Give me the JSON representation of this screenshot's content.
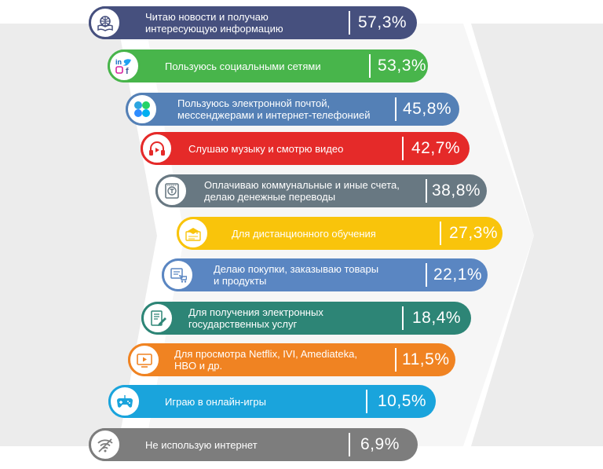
{
  "chart_data": {
    "type": "bar",
    "categories": [
      "Читаю новости и получаю интересующую информацию",
      "Пользуюсь социальными сетями",
      "Пользуюсь электронной почтой, мессенджерами и интернет-телефонией",
      "Слушаю музыку и смотрю видео",
      "Оплачиваю коммунальные и иные счета, делаю денежные переводы",
      "Для дистанционного обучения",
      "Делаю покупки, заказываю товары и продукты",
      "Для получения электронных государственных услуг",
      "Для просмотра Netflix, IVI, Amediateka, HBO и др.",
      "Играю в онлайн-игры",
      "Не использую интернет"
    ],
    "values": [
      57.3,
      53.3,
      45.8,
      42.7,
      38.8,
      27.3,
      22.1,
      18.4,
      11.5,
      10.5,
      6.9
    ],
    "value_labels": [
      "57,3%",
      "53,3%",
      "45,8%",
      "42,7%",
      "38,8%",
      "27,3%",
      "22,1%",
      "18,4%",
      "11,5%",
      "10,5%",
      "6,9%"
    ],
    "title": "",
    "xlabel": "",
    "ylabel": ""
  },
  "rows": [
    {
      "label": [
        "Читаю новости и получаю",
        "интересующую информацию"
      ],
      "value": "57,3%",
      "color": "#46507e",
      "icon": "book-globe-icon",
      "icon_name": "news-icon"
    },
    {
      "label": [
        "Пользуюсь социальными сетями"
      ],
      "value": "53,3%",
      "color": "#48b54b",
      "icon": "social-icon",
      "icon_name": "social-media-icon"
    },
    {
      "label": [
        "Пользуюсь электронной почтой,",
        "мессенджерами и интернет-телефонией"
      ],
      "value": "45,8%",
      "color": "#5480b6",
      "icon": "messenger-icon",
      "icon_name": "messenger-icon"
    },
    {
      "label": [
        "Слушаю музыку и смотрю видео"
      ],
      "value": "42,7%",
      "color": "#e52a29",
      "icon": "headphones-icon",
      "icon_name": "headphones-icon"
    },
    {
      "label": [
        "Оплачиваю коммунальные и иные счета,",
        "делаю денежные переводы"
      ],
      "value": "38,8%",
      "color": "#687882",
      "icon": "payment-icon",
      "icon_name": "payment-icon"
    },
    {
      "label": [
        "Для дистанционного обучения"
      ],
      "value": "27,3%",
      "color": "#f9c40b",
      "icon": "education-icon",
      "icon_name": "graduation-cap-icon"
    },
    {
      "label": [
        "Делаю покупки, заказываю товары",
        "и продукты"
      ],
      "value": "22,1%",
      "color": "#5a86c2",
      "icon": "shopping-icon",
      "icon_name": "shopping-cart-icon"
    },
    {
      "label": [
        "Для получения электронных",
        "государственных услуг"
      ],
      "value": "18,4%",
      "color": "#2d8576",
      "icon": "document-icon",
      "icon_name": "document-icon"
    },
    {
      "label": [
        "Для просмотра Netflix, IVI, Amediateka,",
        "HBO и др."
      ],
      "value": "11,5%",
      "color": "#f08322",
      "icon": "video-icon",
      "icon_name": "video-player-icon"
    },
    {
      "label": [
        "Играю в онлайн-игры"
      ],
      "value": "10,5%",
      "color": "#1aa4dc",
      "icon": "gamepad-icon",
      "icon_name": "gamepad-icon"
    },
    {
      "label": [
        "Не использую интернет"
      ],
      "value": "6,9%",
      "color": "#7d7d7d",
      "icon": "no-wifi-icon",
      "icon_name": "no-wifi-icon"
    }
  ],
  "colors": {
    "background_band": "#ececec",
    "arrow_light": "#f6f6f6"
  }
}
